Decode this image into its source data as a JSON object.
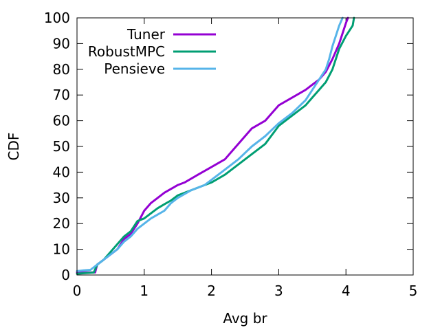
{
  "chart_data": {
    "type": "line",
    "title": "",
    "xlabel": "Avg br",
    "ylabel": "CDF",
    "xlim": [
      0,
      5
    ],
    "ylim": [
      0,
      100
    ],
    "xticks": [
      "0",
      "1",
      "2",
      "3",
      "4",
      "5"
    ],
    "yticks": [
      "0",
      "10",
      "20",
      "30",
      "40",
      "50",
      "60",
      "70",
      "80",
      "90",
      "100"
    ],
    "grid": false,
    "legend": "top-left",
    "series": [
      {
        "name": "Tuner",
        "color": "#9400d3",
        "x": [
          0,
          0.27,
          0.3,
          0.45,
          0.6,
          0.7,
          0.8,
          0.9,
          1.0,
          1.1,
          1.2,
          1.3,
          1.4,
          1.5,
          1.6,
          1.8,
          2.0,
          2.2,
          2.3,
          2.4,
          2.5,
          2.6,
          2.8,
          2.9,
          3.0,
          3.2,
          3.4,
          3.5,
          3.6,
          3.7,
          3.8,
          3.9,
          3.95,
          4.0,
          4.03
        ],
        "y": [
          1,
          1,
          4,
          7,
          10,
          14,
          16,
          20,
          25,
          28,
          30,
          32,
          33.5,
          35,
          36,
          39,
          42,
          45,
          48,
          51,
          54,
          57,
          60,
          63,
          66,
          69,
          72,
          74,
          76,
          79,
          84,
          90,
          94,
          98,
          100
        ]
      },
      {
        "name": "RobustMPC",
        "color": "#009e73",
        "x": [
          0,
          0.25,
          0.3,
          0.4,
          0.5,
          0.6,
          0.7,
          0.8,
          0.9,
          1.0,
          1.1,
          1.2,
          1.3,
          1.4,
          1.5,
          1.7,
          1.9,
          2.0,
          2.2,
          2.4,
          2.6,
          2.8,
          3.0,
          3.2,
          3.4,
          3.5,
          3.6,
          3.7,
          3.8,
          3.9,
          4.0,
          4.1,
          4.12
        ],
        "y": [
          0.5,
          1,
          4,
          6,
          9,
          12,
          15,
          17,
          21,
          22,
          24,
          26,
          27.5,
          29,
          31,
          33,
          35,
          36,
          39,
          43,
          47,
          51,
          58,
          62,
          66,
          69,
          72,
          75,
          80,
          88,
          93,
          97,
          100
        ]
      },
      {
        "name": "Pensieve",
        "color": "#56b4e9",
        "x": [
          0,
          0.1,
          0.2,
          0.3,
          0.4,
          0.5,
          0.6,
          0.7,
          0.8,
          0.9,
          1.0,
          1.1,
          1.2,
          1.3,
          1.4,
          1.5,
          1.7,
          1.9,
          2.0,
          2.2,
          2.4,
          2.6,
          2.8,
          3.0,
          3.2,
          3.4,
          3.5,
          3.6,
          3.7,
          3.75,
          3.8,
          3.85,
          3.9,
          3.95
        ],
        "y": [
          1.5,
          1.8,
          2,
          4,
          6,
          8,
          10,
          13,
          15,
          18,
          20,
          22,
          23.5,
          25,
          28,
          30,
          33,
          35,
          37,
          41,
          45,
          50,
          54,
          59,
          63,
          68,
          72,
          76,
          80,
          84,
          89,
          93,
          97,
          100
        ]
      }
    ]
  }
}
